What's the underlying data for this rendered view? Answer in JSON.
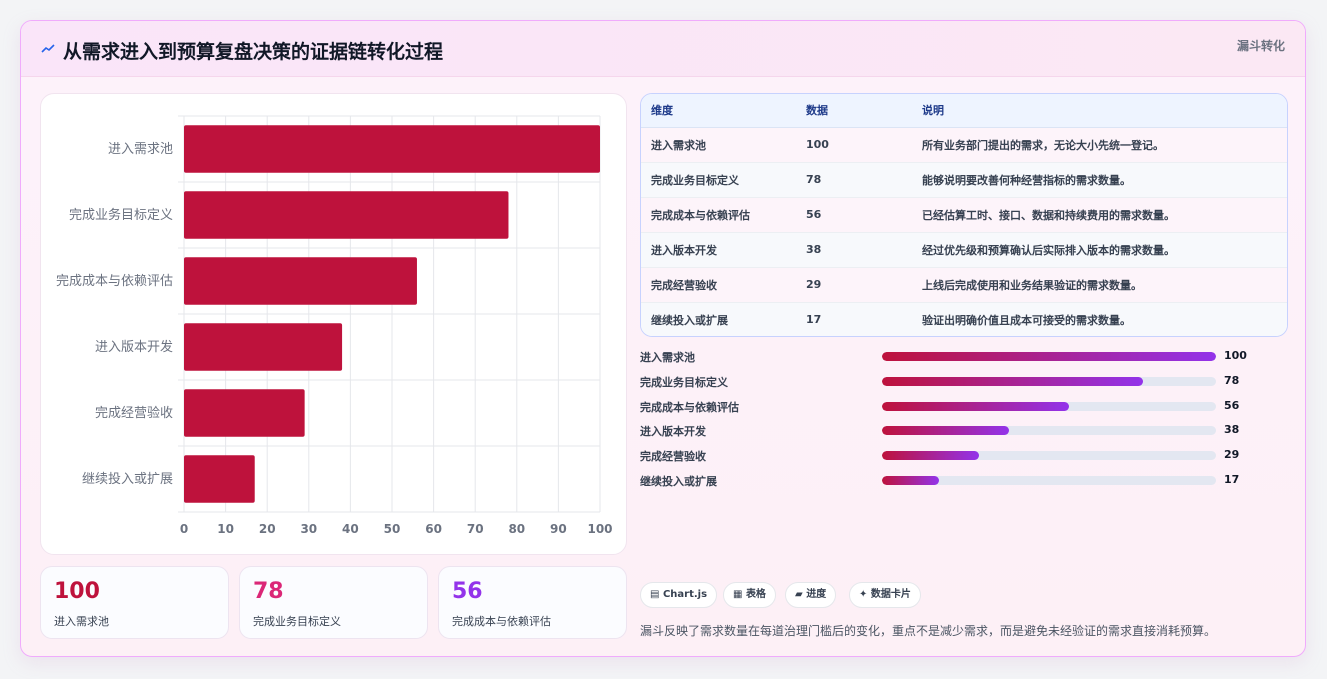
{
  "header": {
    "title": "从需求进入到预算复盘决策的证据链转化过程",
    "tag": "漏斗转化",
    "icon": "chart-line-icon"
  },
  "chart_data": {
    "type": "bar",
    "orientation": "horizontal",
    "categories": [
      "进入需求池",
      "完成业务目标定义",
      "完成成本与依赖评估",
      "进入版本开发",
      "完成经营验收",
      "继续投入或扩展"
    ],
    "values": [
      100,
      78,
      56,
      38,
      29,
      17
    ],
    "xlim": [
      0,
      100
    ],
    "xticks": [
      0,
      10,
      20,
      30,
      40,
      50,
      60,
      70,
      80,
      90,
      100
    ],
    "grid": true,
    "bar_color": "#be123c"
  },
  "kpis": [
    {
      "value": "100",
      "label": "进入需求池",
      "color": "#be123c"
    },
    {
      "value": "78",
      "label": "完成业务目标定义",
      "color": "#db2777"
    },
    {
      "value": "56",
      "label": "完成成本与依赖评估",
      "color": "#9333ea"
    }
  ],
  "table": {
    "headers": [
      "维度",
      "数据",
      "说明"
    ],
    "rows": [
      [
        "进入需求池",
        "100",
        "所有业务部门提出的需求，无论大小先统一登记。"
      ],
      [
        "完成业务目标定义",
        "78",
        "能够说明要改善何种经营指标的需求数量。"
      ],
      [
        "完成成本与依赖评估",
        "56",
        "已经估算工时、接口、数据和持续费用的需求数量。"
      ],
      [
        "进入版本开发",
        "38",
        "经过优先级和预算确认后实际排入版本的需求数量。"
      ],
      [
        "完成经营验收",
        "29",
        "上线后完成使用和业务结果验证的需求数量。"
      ],
      [
        "继续投入或扩展",
        "17",
        "验证出明确价值且成本可接受的需求数量。"
      ]
    ]
  },
  "progress": {
    "max": 100,
    "items": [
      {
        "label": "进入需求池",
        "value": 100
      },
      {
        "label": "完成业务目标定义",
        "value": 78
      },
      {
        "label": "完成成本与依赖评估",
        "value": 56
      },
      {
        "label": "进入版本开发",
        "value": 38
      },
      {
        "label": "完成经营验收",
        "value": 29
      },
      {
        "label": "继续投入或扩展",
        "value": 17
      }
    ]
  },
  "chips": [
    {
      "icon": "chart-icon",
      "glyph": "▤",
      "label": "Chart.js"
    },
    {
      "icon": "table-icon",
      "glyph": "▦",
      "label": "表格"
    },
    {
      "icon": "progress-icon",
      "glyph": "▰",
      "label": "进度"
    },
    {
      "icon": "card-icon",
      "glyph": "✦",
      "label": "数据卡片"
    }
  ],
  "note": "漏斗反映了需求数量在每道治理门槛后的变化，重点不是减少需求，而是避免未经验证的需求直接消耗预算。"
}
